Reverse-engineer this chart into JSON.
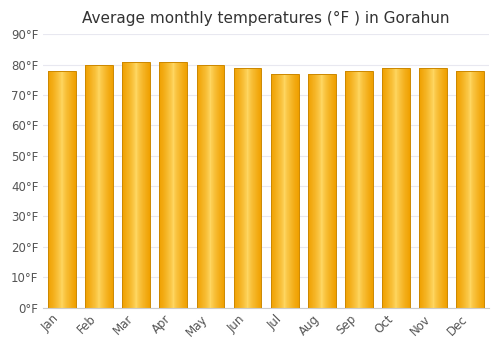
{
  "title": "Average monthly temperatures (°F ) in Gorahun",
  "months": [
    "Jan",
    "Feb",
    "Mar",
    "Apr",
    "May",
    "Jun",
    "Jul",
    "Aug",
    "Sep",
    "Oct",
    "Nov",
    "Dec"
  ],
  "values": [
    78,
    80,
    81,
    81,
    80,
    79,
    77,
    77,
    78,
    79,
    79,
    78
  ],
  "bar_color_center": "#FFD966",
  "bar_color_edge": "#F0A500",
  "bar_outline_color": "#CC8800",
  "background_color": "#FFFFFF",
  "plot_bg_color": "#FFFFFF",
  "grid_color": "#E8E8F0",
  "ylim": [
    0,
    90
  ],
  "yticks": [
    0,
    10,
    20,
    30,
    40,
    50,
    60,
    70,
    80,
    90
  ],
  "ytick_labels": [
    "0°F",
    "10°F",
    "20°F",
    "30°F",
    "40°F",
    "50°F",
    "60°F",
    "70°F",
    "80°F",
    "90°F"
  ],
  "title_fontsize": 11,
  "tick_fontsize": 8.5,
  "figsize": [
    5.0,
    3.5
  ],
  "dpi": 100
}
